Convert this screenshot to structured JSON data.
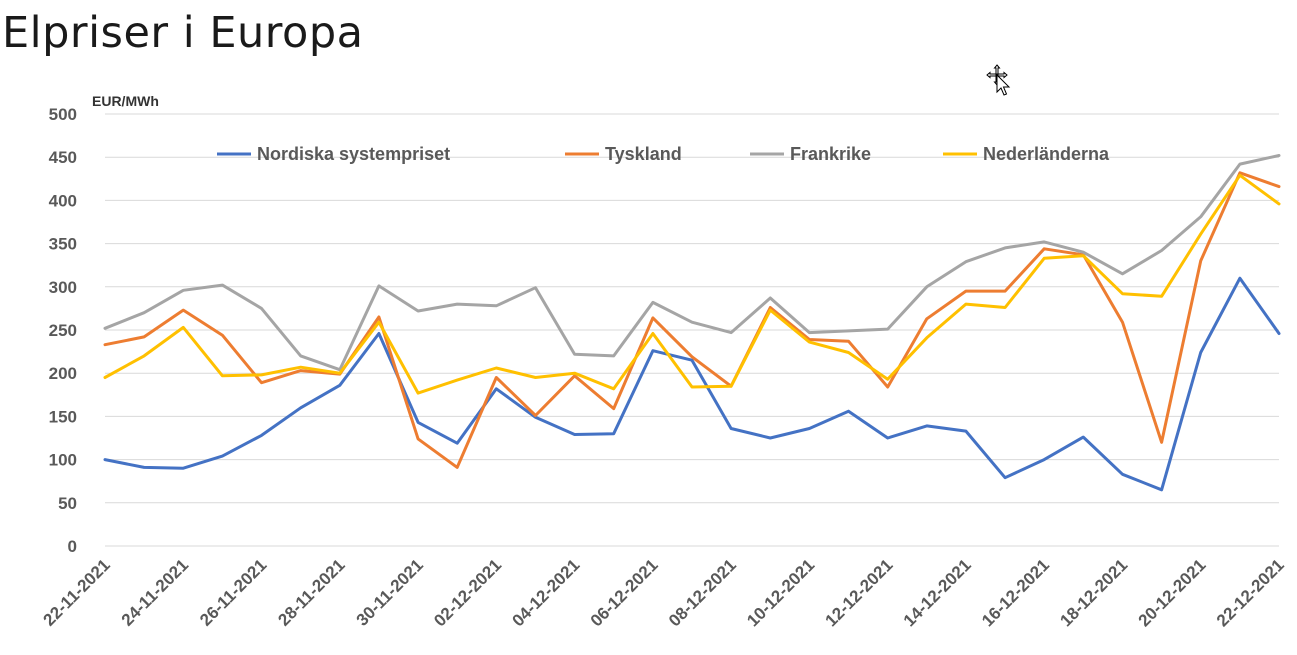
{
  "title": "Elpriser i Europa",
  "chart_data": {
    "type": "line",
    "title": "Elpriser i Europa",
    "ylabel": "EUR/MWh",
    "xlabel": "",
    "ylim": [
      0,
      500
    ],
    "yticks": [
      0,
      50,
      100,
      150,
      200,
      250,
      300,
      350,
      400,
      450,
      500
    ],
    "grid": true,
    "legend": "top",
    "x": [
      "22-11-2021",
      "23-11-2021",
      "24-11-2021",
      "25-11-2021",
      "26-11-2021",
      "27-11-2021",
      "28-11-2021",
      "29-11-2021",
      "30-11-2021",
      "01-12-2021",
      "02-12-2021",
      "03-12-2021",
      "04-12-2021",
      "05-12-2021",
      "06-12-2021",
      "07-12-2021",
      "08-12-2021",
      "09-12-2021",
      "10-12-2021",
      "11-12-2021",
      "12-12-2021",
      "13-12-2021",
      "14-12-2021",
      "15-12-2021",
      "16-12-2021",
      "17-12-2021",
      "18-12-2021",
      "19-12-2021",
      "20-12-2021",
      "21-12-2021",
      "22-12-2021"
    ],
    "xtick_labels": [
      "22-11-2021",
      "24-11-2021",
      "26-11-2021",
      "28-11-2021",
      "30-11-2021",
      "02-12-2021",
      "04-12-2021",
      "06-12-2021",
      "08-12-2021",
      "10-12-2021",
      "12-12-2021",
      "14-12-2021",
      "16-12-2021",
      "18-12-2021",
      "20-12-2021",
      "22-12-2021"
    ],
    "series": [
      {
        "name": "Nordiska systempriset",
        "color": "#4472C4",
        "values": [
          100,
          91,
          90,
          104,
          128,
          160,
          186,
          246,
          143,
          119,
          182,
          149,
          129,
          130,
          226,
          215,
          136,
          125,
          136,
          156,
          125,
          139,
          133,
          79,
          100,
          126,
          83,
          65,
          224,
          310,
          246
        ]
      },
      {
        "name": "Tyskland",
        "color": "#ED7D31",
        "values": [
          233,
          242,
          273,
          244,
          189,
          203,
          199,
          265,
          124,
          91,
          195,
          151,
          197,
          159,
          264,
          219,
          185,
          276,
          239,
          237,
          184,
          263,
          295,
          295,
          344,
          337,
          259,
          120,
          330,
          432,
          416
        ]
      },
      {
        "name": "Frankrike",
        "color": "#A5A5A5",
        "values": [
          252,
          270,
          296,
          302,
          275,
          220,
          204,
          301,
          272,
          280,
          278,
          299,
          222,
          220,
          282,
          259,
          247,
          287,
          247,
          249,
          251,
          300,
          329,
          345,
          352,
          340,
          315,
          342,
          381,
          442,
          452
        ]
      },
      {
        "name": "Nederländerna",
        "color": "#FFC000",
        "values": [
          195,
          220,
          253,
          197,
          198,
          207,
          200,
          259,
          177,
          192,
          206,
          195,
          200,
          182,
          246,
          184,
          185,
          273,
          236,
          224,
          193,
          241,
          280,
          276,
          333,
          336,
          292,
          289,
          361,
          429,
          396
        ]
      }
    ]
  }
}
